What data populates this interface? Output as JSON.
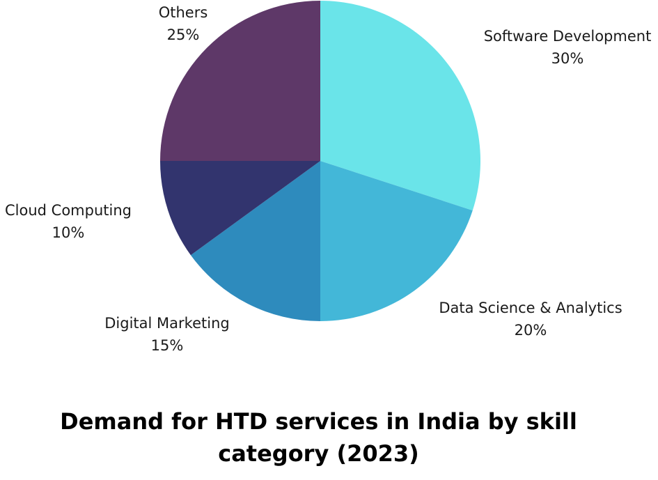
{
  "chart_data": {
    "type": "pie",
    "title": "Demand for HTD services in India by skill\ncategory (2023)",
    "slices": [
      {
        "label": "Software Development",
        "value": 30,
        "value_label": "30%",
        "color": "#6ae4e9"
      },
      {
        "label": "Data Science & Analytics",
        "value": 20,
        "value_label": "20%",
        "color": "#43b7d8"
      },
      {
        "label": "Digital Marketing",
        "value": 15,
        "value_label": "15%",
        "color": "#2e8bbd"
      },
      {
        "label": "Cloud Computing",
        "value": 10,
        "value_label": "10%",
        "color": "#32346e"
      },
      {
        "label": "Others",
        "value": 25,
        "value_label": "25%",
        "color": "#5e3868"
      }
    ],
    "start_angle": "12 o'clock",
    "direction": "clockwise",
    "legend": "none (labels beside slices)"
  }
}
